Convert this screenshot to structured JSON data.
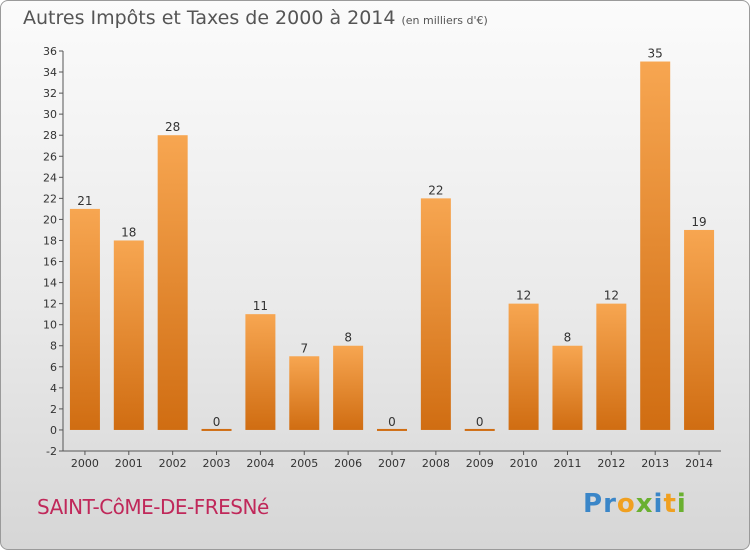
{
  "title": "Autres Impôts et Taxes de 2000 à 2014",
  "subtitle": "(en milliers d'€)",
  "commune": "SAINT-CôME-DE-FRESNé",
  "logo": {
    "letters": [
      {
        "ch": "P",
        "color": "#3a86c8"
      },
      {
        "ch": "r",
        "color": "#3a86c8"
      },
      {
        "ch": "o",
        "color": "#f0a020"
      },
      {
        "ch": "x",
        "color": "#6ab030"
      },
      {
        "ch": "i",
        "color": "#3a86c8"
      },
      {
        "ch": "t",
        "color": "#f0a020"
      },
      {
        "ch": "i",
        "color": "#6ab030"
      }
    ]
  },
  "colors": {
    "bar_light": "#f7a651",
    "bar_dark": "#d06d12",
    "commune": "#c0285a",
    "title": "#555555"
  },
  "chart_data": {
    "type": "bar",
    "categories": [
      "2000",
      "2001",
      "2002",
      "2003",
      "2004",
      "2005",
      "2006",
      "2007",
      "2008",
      "2009",
      "2010",
      "2011",
      "2012",
      "2013",
      "2014"
    ],
    "values": [
      21,
      18,
      28,
      0,
      11,
      7,
      8,
      0,
      22,
      0,
      12,
      8,
      12,
      35,
      19
    ],
    "ylim": [
      -2,
      36
    ],
    "yticks": [
      -2,
      0,
      2,
      4,
      6,
      8,
      10,
      12,
      14,
      16,
      18,
      20,
      22,
      24,
      26,
      28,
      30,
      32,
      34,
      36
    ],
    "grid": false,
    "title": "Autres Impôts et Taxes de 2000 à 2014",
    "subtitle": "(en milliers d'€)",
    "xlabel": "",
    "ylabel": ""
  }
}
